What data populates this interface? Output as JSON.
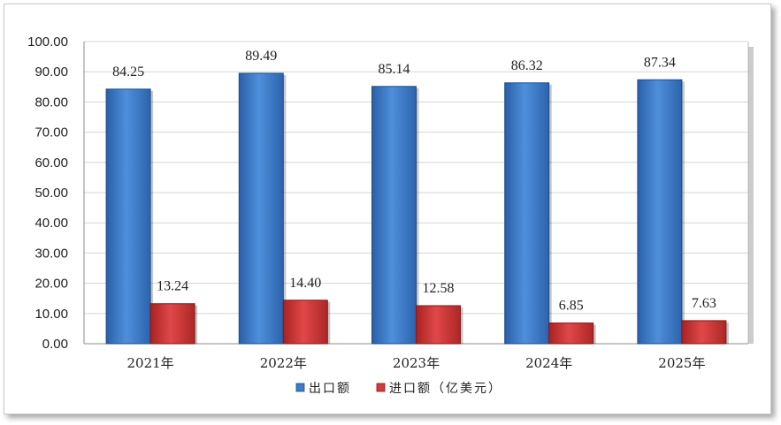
{
  "chart_data": {
    "type": "bar",
    "categories": [
      "2021年",
      "2022年",
      "2023年",
      "2024年",
      "2025年"
    ],
    "series": [
      {
        "name": "出口额",
        "values": [
          84.25,
          89.49,
          85.14,
          86.32,
          87.34
        ],
        "color": "#3d7cc9"
      },
      {
        "name": "进口额（亿美元）",
        "values": [
          13.24,
          14.4,
          12.58,
          6.85,
          7.63
        ],
        "color": "#d23c3c"
      }
    ],
    "yticks": [
      "0.00",
      "10.00",
      "20.00",
      "30.00",
      "40.00",
      "50.00",
      "60.00",
      "70.00",
      "80.00",
      "90.00",
      "100.00"
    ],
    "ylim": [
      0,
      100
    ],
    "grid": true,
    "legend": "bottom",
    "data_labels": true
  }
}
